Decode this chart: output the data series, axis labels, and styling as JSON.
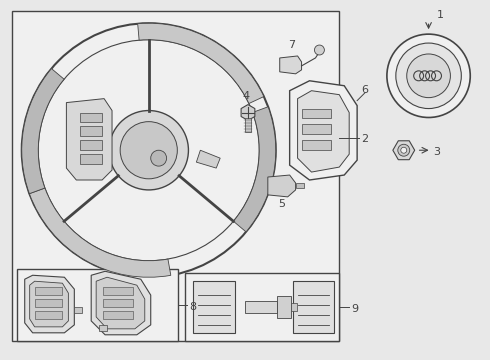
{
  "bg_color": "#e8e8e8",
  "lc": "#444444",
  "white": "#ffffff",
  "light_gray": "#f0f0f0",
  "mid_gray": "#d0d0d0",
  "dark_gray": "#a0a0a0",
  "fig_w": 4.9,
  "fig_h": 3.6,
  "dpi": 100
}
